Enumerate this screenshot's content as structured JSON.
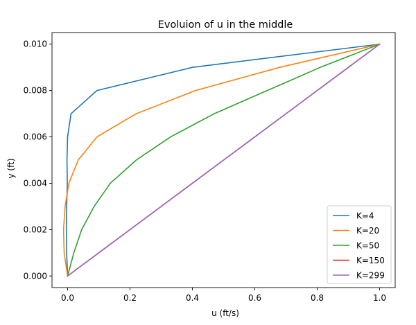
{
  "chart_data": {
    "type": "line",
    "title": "Evoluion of u in the middle",
    "xlabel": "u (ft/s)",
    "ylabel": "y (ft)",
    "xlim": [
      -0.05,
      1.05
    ],
    "ylim": [
      -0.0005,
      0.0105
    ],
    "xticks": [
      "0.0",
      "0.2",
      "0.4",
      "0.6",
      "0.8",
      "1.0"
    ],
    "yticks": [
      "0.000",
      "0.002",
      "0.004",
      "0.006",
      "0.008",
      "0.010"
    ],
    "legend_position": "bottom-right",
    "y": [
      0.0,
      0.001,
      0.002,
      0.003,
      0.004,
      0.005,
      0.006,
      0.007,
      0.008,
      0.009,
      0.01
    ],
    "series": [
      {
        "name": "K=4",
        "color": "#1f77b4",
        "x": [
          0.0,
          -0.003,
          -0.004,
          -0.003,
          -0.001,
          -0.002,
          0.0,
          0.011,
          0.094,
          0.4,
          1.0
        ]
      },
      {
        "name": "K=20",
        "color": "#ff7f0e",
        "x": [
          0.0,
          -0.011,
          -0.013,
          -0.008,
          0.004,
          0.034,
          0.094,
          0.22,
          0.41,
          0.68,
          1.0
        ]
      },
      {
        "name": "K=50",
        "color": "#2ca02c",
        "x": [
          0.0,
          0.02,
          0.045,
          0.085,
          0.137,
          0.22,
          0.33,
          0.47,
          0.64,
          0.81,
          1.0
        ]
      },
      {
        "name": "K=150",
        "color": "#d62728",
        "x": [
          0.0,
          0.1,
          0.2,
          0.3,
          0.4,
          0.5,
          0.6,
          0.7,
          0.8,
          0.9,
          1.0
        ]
      },
      {
        "name": "K=299",
        "color": "#9467bd",
        "x": [
          0.0,
          0.1,
          0.2,
          0.3,
          0.4,
          0.5,
          0.6,
          0.7,
          0.8,
          0.9,
          1.0
        ]
      }
    ]
  }
}
